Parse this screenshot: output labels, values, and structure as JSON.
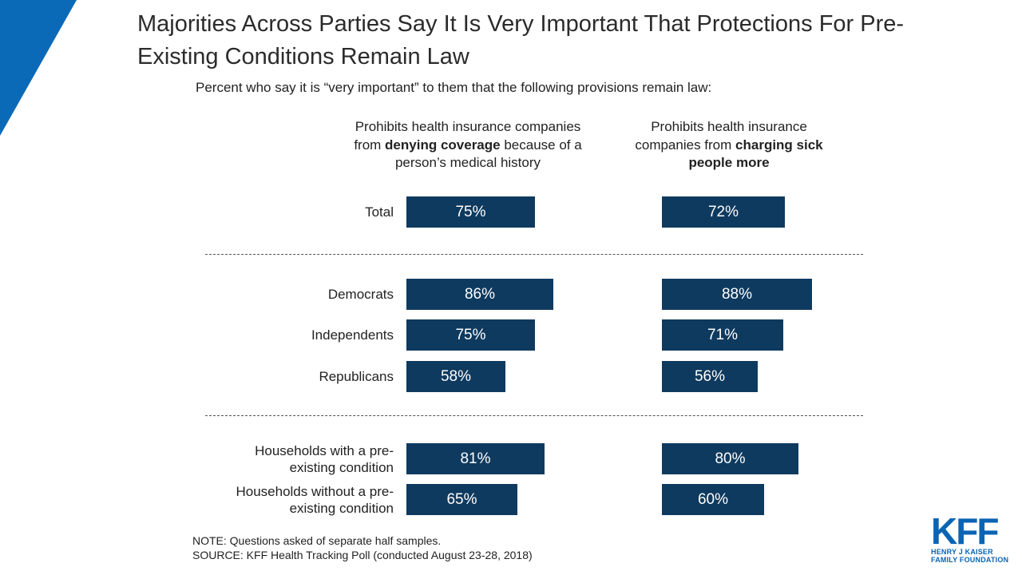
{
  "title": "Majorities Across Parties Say It Is Very Important That Protections For Pre-Existing Conditions Remain Law",
  "subtitle": "Percent who say it is “very important” to them that the following provisions remain law:",
  "columns": [
    {
      "pre": "Prohibits health insurance companies from ",
      "bold": "denying coverage",
      "post": " because of a person’s medical history"
    },
    {
      "pre": "Prohibits health insurance companies from ",
      "bold": "charging sick people more",
      "post": ""
    }
  ],
  "chart_data": {
    "type": "bar",
    "orientation": "horizontal",
    "categories": [
      "Total",
      "Democrats",
      "Independents",
      "Republicans",
      "Households with a pre-existing condition",
      "Households without a pre-existing condition"
    ],
    "groups": [
      [
        "Total"
      ],
      [
        "Democrats",
        "Independents",
        "Republicans"
      ],
      [
        "Households with a pre-existing condition",
        "Households without a pre-existing condition"
      ]
    ],
    "series": [
      {
        "name": "Prohibits health insurance companies from denying coverage because of a person’s medical history",
        "values": [
          75,
          86,
          75,
          58,
          81,
          65
        ]
      },
      {
        "name": "Prohibits health insurance companies from charging sick people more",
        "values": [
          72,
          88,
          71,
          56,
          80,
          60
        ]
      }
    ],
    "value_suffix": "%",
    "bar_color": "#0f3a5f"
  },
  "row_labels": [
    "Total",
    "Democrats",
    "Independents",
    "Republicans",
    "Households with a pre-existing condition",
    "Households without a pre-existing condition"
  ],
  "notes": {
    "note": "NOTE: Questions asked of separate half samples.",
    "source": "SOURCE: KFF Health Tracking Poll (conducted August 23-28, 2018)"
  },
  "logo": {
    "name": "KFF",
    "line1": "HENRY J KAISER",
    "line2": "FAMILY FOUNDATION"
  },
  "colors": {
    "accent": "#0a64b4",
    "bar": "#0f3a5f"
  }
}
